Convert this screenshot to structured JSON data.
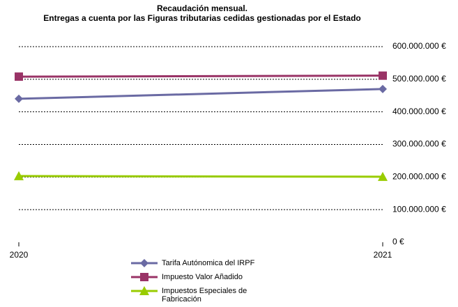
{
  "chart_data": {
    "type": "line",
    "title": "Recaudación mensual.",
    "subtitle": "Entregas a cuenta por las Figuras tributarias cedidas gestionadas por el Estado",
    "categories": [
      "2020",
      "2021"
    ],
    "series": [
      {
        "name": "Tarifa Autónomica del IRPF",
        "color": "#6a6aa3",
        "marker": "diamond",
        "values": [
          440000000,
          470000000
        ]
      },
      {
        "name": "Impuesto Valor Añadido",
        "color": "#993366",
        "marker": "square",
        "values": [
          508000000,
          511000000
        ]
      },
      {
        "name": "Impuestos Especiales de Fabricación",
        "color": "#99cc00",
        "marker": "triangle",
        "values": [
          203000000,
          201000000
        ]
      }
    ],
    "ylim": [
      0,
      600000000
    ],
    "yticks": [
      {
        "value": 0,
        "label": "0 €"
      },
      {
        "value": 100000000,
        "label": "100.000.000 €"
      },
      {
        "value": 200000000,
        "label": "200.000.000 €"
      },
      {
        "value": 300000000,
        "label": "300.000.000 €"
      },
      {
        "value": 400000000,
        "label": "400.000.000 €"
      },
      {
        "value": 500000000,
        "label": "500.000.000 €"
      },
      {
        "value": 600000000,
        "label": "600.000.000 €"
      }
    ],
    "grid": true
  }
}
